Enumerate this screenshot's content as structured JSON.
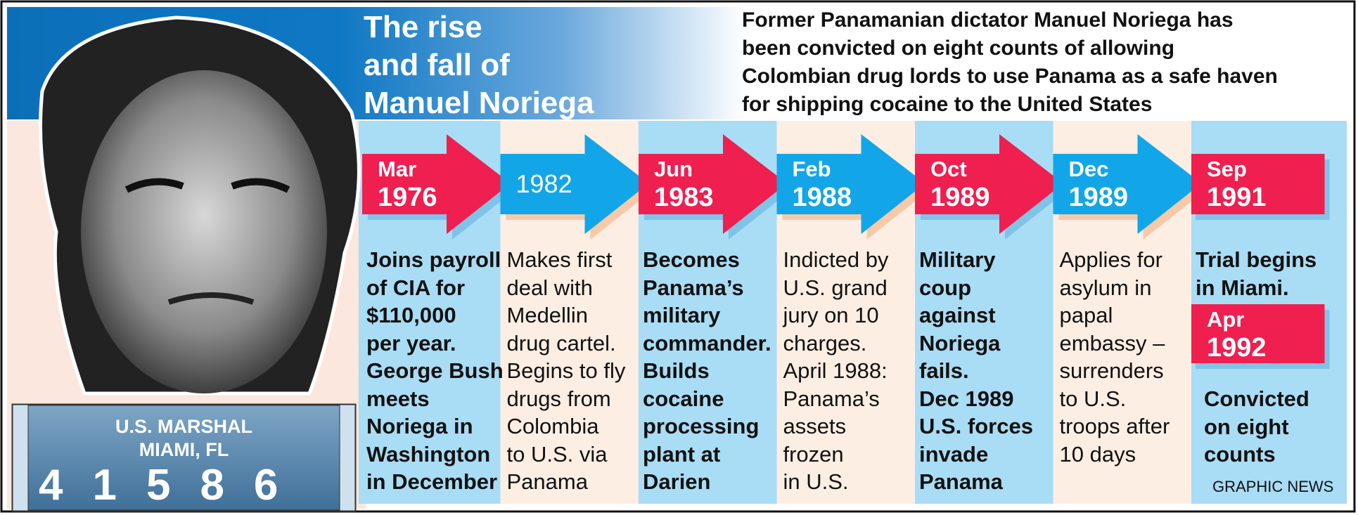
{
  "title": {
    "lines": [
      "The rise",
      "and fall of",
      "Manuel Noriega"
    ]
  },
  "intro": {
    "lines": [
      "Former Panamanian dictator Manuel Noriega has",
      "been convicted on eight counts of allowing",
      "Colombian drug lords to use Panama as a safe haven",
      "for shipping cocaine to the United States"
    ]
  },
  "placard": {
    "line1": "U.S. MARSHAL",
    "line2": "MIAMI, FL",
    "number": "41586"
  },
  "events": [
    {
      "date": [
        "Mar",
        "1976"
      ],
      "text": [
        "Joins payroll",
        "of CIA for",
        "$110,000",
        "per year.",
        "George Bush",
        "meets",
        "Noriega in",
        "Washington",
        "in December"
      ]
    },
    {
      "date": [
        "1982"
      ],
      "text": [
        "Makes first",
        "deal with",
        "Medellin",
        "drug cartel.",
        "Begins to fly",
        "drugs from",
        "Colombia",
        "to U.S. via",
        "Panama"
      ]
    },
    {
      "date": [
        "Jun",
        "1983"
      ],
      "text": [
        "Becomes",
        "Panama’s",
        "military",
        "commander.",
        "Builds",
        "cocaine",
        "processing",
        "plant at",
        "Darien"
      ]
    },
    {
      "date": [
        "Feb",
        "1988"
      ],
      "text": [
        "Indicted by",
        "U.S. grand",
        "jury on 10",
        "charges.",
        "April 1988:",
        "Panama’s",
        "assets",
        "frozen",
        "in U.S."
      ]
    },
    {
      "date": [
        "Oct",
        "1989"
      ],
      "text": [
        "Military",
        "coup",
        "against",
        "Noriega",
        "fails.",
        "Dec 1989",
        "U.S. forces",
        "invade",
        "Panama"
      ]
    },
    {
      "date": [
        "Dec",
        "1989"
      ],
      "text": [
        "Applies for",
        "asylum in",
        "papal",
        "embassy –",
        "surrenders",
        "to U.S.",
        "troops after",
        "10 days"
      ]
    },
    {
      "date": [
        "Sep",
        "1991"
      ],
      "text": [
        "Trial begins",
        "in Miami."
      ]
    }
  ],
  "final_event": {
    "date": [
      "Apr",
      "1992"
    ],
    "text": [
      "Convicted",
      "on eight",
      "counts"
    ]
  },
  "credit": "GRAPHIC NEWS"
}
